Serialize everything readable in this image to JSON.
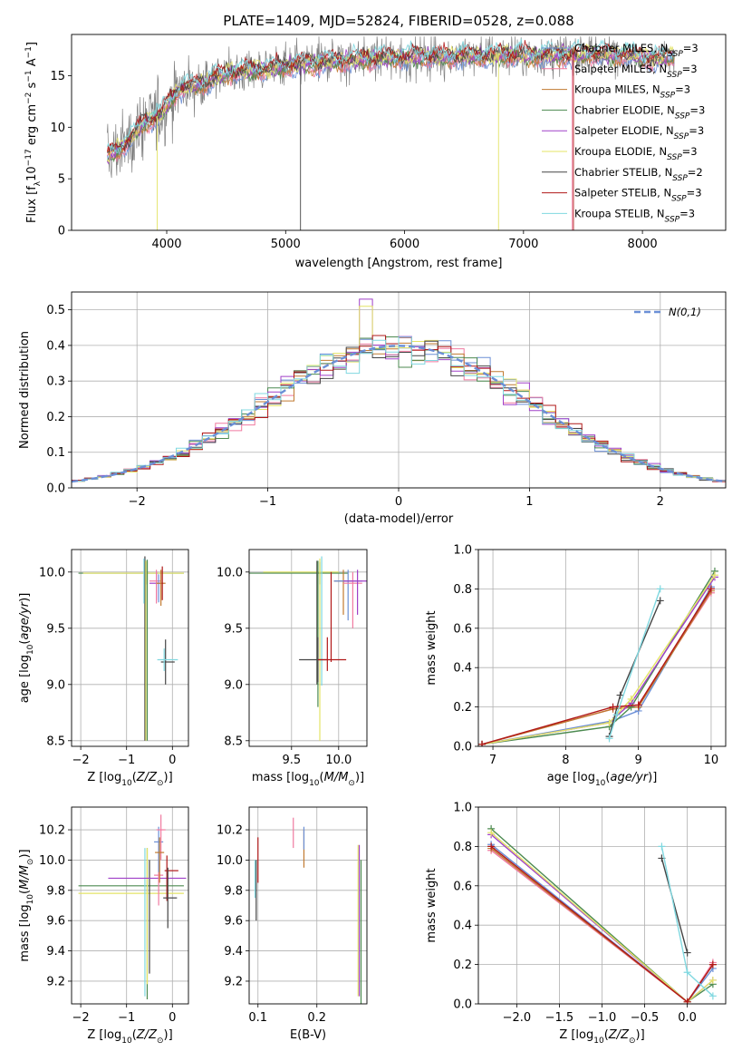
{
  "figure": {
    "title": "PLATE=1409, MJD=52824, FIBERID=0528, z=0.088"
  },
  "colors": {
    "series": [
      "#6b8fd6",
      "#f07aa0",
      "#c07a30",
      "#4c8a50",
      "#a040c8",
      "#e4e466",
      "#444444",
      "#b01818",
      "#80d8e0"
    ],
    "data_spectrum": "#808080",
    "gaussian": "#6b8fd6",
    "grid": "#b0b0b0"
  },
  "chart_data": [
    {
      "id": "spectrum",
      "type": "line",
      "title": "PLATE=1409, MJD=52824, FIBERID=0528, z=0.088",
      "xlabel": "wavelength [Angstrom, rest frame]",
      "ylabel": "Flux [fλ10⁻¹⁷ erg cm⁻² s⁻¹ A⁻¹]",
      "xlim": [
        3200,
        8700
      ],
      "ylim": [
        0,
        19
      ],
      "xticks": [
        4000,
        5000,
        6000,
        7000,
        8000
      ],
      "yticks": [
        0,
        5,
        10,
        15
      ],
      "grid": false,
      "legend_position": "upper-right",
      "continuum_knots": [
        [
          3500,
          7.2
        ],
        [
          3650,
          8.3
        ],
        [
          3800,
          10.3
        ],
        [
          3950,
          11.3
        ],
        [
          4100,
          13.7
        ],
        [
          4300,
          14.2
        ],
        [
          4500,
          15.3
        ],
        [
          4800,
          15.6
        ],
        [
          5200,
          16.2
        ],
        [
          5600,
          16.6
        ],
        [
          6000,
          16.8
        ],
        [
          6400,
          16.9
        ],
        [
          6800,
          17.0
        ],
        [
          7200,
          17.0
        ],
        [
          7600,
          17.1
        ],
        [
          7900,
          17.0
        ],
        [
          8100,
          16.6
        ],
        [
          8270,
          16.9
        ]
      ],
      "data_noise_amplitude": 2.5,
      "series": [
        {
          "name": "Chabrier MILES, N_SSP=3"
        },
        {
          "name": "Salpeter MILES, N_SSP=3"
        },
        {
          "name": "Kroupa MILES, N_SSP=3"
        },
        {
          "name": "Chabrier ELODIE, N_SSP=3"
        },
        {
          "name": "Salpeter ELODIE, N_SSP=3"
        },
        {
          "name": "Kroupa ELODIE, N_SSP=3"
        },
        {
          "name": "Chabrier STELIB, N_SSP=2"
        },
        {
          "name": "Salpeter STELIB, N_SSP=3"
        },
        {
          "name": "Kroupa STELIB, N_SSP=3"
        }
      ]
    },
    {
      "id": "residuals",
      "type": "line",
      "xlabel": "(data-model)/error",
      "ylabel": "Normed distribution",
      "xlim": [
        -2.5,
        2.5
      ],
      "ylim": [
        0,
        0.55
      ],
      "xticks": [
        -2,
        -1,
        0,
        1,
        2
      ],
      "yticks": [
        0.0,
        0.1,
        0.2,
        0.3,
        0.4,
        0.5
      ],
      "grid": true,
      "legend_position": "upper-right",
      "gaussian_label": "N(0,1)",
      "bin_width": 0.1
    },
    {
      "id": "age-vs-Z",
      "type": "scatter",
      "xlabel": "Z [log10(Z/Zsun)]",
      "ylabel": "age  [log10(age/yr)]",
      "xlim": [
        -2.2,
        0.35
      ],
      "ylim": [
        8.45,
        10.2
      ],
      "xticks": [
        -2,
        -1,
        0
      ],
      "yticks": [
        8.5,
        9.0,
        9.5,
        10.0
      ],
      "grid": true,
      "points": [
        {
          "x": -0.55,
          "y": 9.99,
          "xerr": [
            1.5,
            0.8
          ],
          "yerr": [
            0.1,
            0.12
          ],
          "c": 3
        },
        {
          "x": -0.55,
          "y": 9.99,
          "xerr": [
            1.4,
            0.8
          ],
          "yerr": [
            0.1,
            0.1
          ],
          "c": 5
        },
        {
          "x": -0.6,
          "y": 10.0,
          "yerr": [
            1.5,
            0.14
          ],
          "c": 6
        },
        {
          "x": -0.58,
          "y": 10.0,
          "yerr": [
            1.5,
            0.1
          ],
          "c": 5
        },
        {
          "x": -0.55,
          "y": 10.0,
          "yerr": [
            1.5,
            0.1
          ],
          "c": 3
        },
        {
          "x": -0.62,
          "y": 10.02,
          "yerr": [
            0.3,
            0.1
          ],
          "c": 8
        },
        {
          "x": -0.35,
          "y": 9.9,
          "xerr": [
            0.15,
            0.15
          ],
          "yerr": [
            0.15,
            0.1
          ],
          "c": 4
        },
        {
          "x": -0.35,
          "y": 9.92,
          "xerr": [
            0.15,
            0.1
          ],
          "yerr": [
            0.2,
            0.1
          ],
          "c": 1
        },
        {
          "x": -0.3,
          "y": 9.88,
          "yerr": [
            0.15,
            0.1
          ],
          "c": 0
        },
        {
          "x": -0.25,
          "y": 9.9,
          "xerr": [
            0.1,
            0.1
          ],
          "yerr": [
            0.2,
            0.12
          ],
          "c": 2
        },
        {
          "x": -0.22,
          "y": 9.85,
          "yerr": [
            0.1,
            0.2
          ],
          "c": 7
        },
        {
          "x": -0.15,
          "y": 9.2,
          "xerr": [
            0.1,
            0.2
          ],
          "yerr": [
            0.2,
            0.2
          ],
          "c": 6
        },
        {
          "x": -0.18,
          "y": 9.22,
          "xerr": [
            0.15,
            0.3
          ],
          "yerr": [
            0.1,
            0.1
          ],
          "c": 8
        }
      ]
    },
    {
      "id": "age-vs-mass",
      "type": "scatter",
      "xlabel": "mass [log10(M/Msun)]",
      "ylabel": "",
      "xlim": [
        9.05,
        10.3
      ],
      "ylim": [
        8.45,
        10.2
      ],
      "xticks": [
        9.5,
        10.0
      ],
      "yticks": [
        8.5,
        9.0,
        9.5,
        10.0
      ],
      "grid": true,
      "points": [
        {
          "x": 9.8,
          "y": 9.99,
          "xerr": [
            0.75,
            0.3
          ],
          "yerr": [
            0.1,
            0.1
          ],
          "c": 3
        },
        {
          "x": 9.8,
          "y": 10.0,
          "xerr": [
            0.6,
            0.2
          ],
          "yerr": [
            1.5,
            0.12
          ],
          "c": 5
        },
        {
          "x": 9.77,
          "y": 10.0,
          "yerr": [
            1.0,
            0.1
          ],
          "c": 6
        },
        {
          "x": 9.78,
          "y": 10.0,
          "yerr": [
            1.2,
            0.1
          ],
          "c": 3
        },
        {
          "x": 9.82,
          "y": 9.99,
          "yerr": [
            1.0,
            0.15
          ],
          "c": 8
        },
        {
          "x": 9.78,
          "y": 9.22,
          "xerr": [
            0.2,
            0.1
          ],
          "yerr": [
            0.2,
            0.2
          ],
          "c": 6
        },
        {
          "x": 9.88,
          "y": 9.22,
          "xerr": [
            0.1,
            0.2
          ],
          "yerr": [
            0.1,
            0.2
          ],
          "c": 7
        },
        {
          "x": 9.92,
          "y": 9.9,
          "yerr": [
            0.7,
            0.1
          ],
          "c": 7
        },
        {
          "x": 10.05,
          "y": 9.92,
          "xerr": [
            0.1,
            0.1
          ],
          "yerr": [
            0.3,
            0.1
          ],
          "c": 2
        },
        {
          "x": 10.1,
          "y": 9.92,
          "xerr": [
            0.15,
            0.15
          ],
          "yerr": [
            0.35,
            0.1
          ],
          "c": 0
        },
        {
          "x": 10.15,
          "y": 9.9,
          "xerr": [
            0.1,
            0.1
          ],
          "yerr": [
            0.4,
            0.1
          ],
          "c": 1
        },
        {
          "x": 10.2,
          "y": 9.92,
          "xerr": [
            0.15,
            0.1
          ],
          "yerr": [
            0.3,
            0.1
          ],
          "c": 4
        }
      ]
    },
    {
      "id": "weight-vs-age",
      "type": "line",
      "xlabel": "age  [log10(age/yr)]",
      "ylabel": "mass weight",
      "xlim": [
        6.8,
        10.2
      ],
      "ylim": [
        0,
        1.0
      ],
      "xticks": [
        7,
        8,
        9,
        10
      ],
      "yticks": [
        0.0,
        0.2,
        0.4,
        0.6,
        0.8,
        1.0
      ],
      "grid": true,
      "series": [
        {
          "c": 0,
          "x": [
            6.85,
            8.65,
            9.0,
            10.0
          ],
          "y": [
            0.01,
            0.13,
            0.18,
            0.81
          ]
        },
        {
          "c": 1,
          "x": [
            6.85,
            8.65,
            9.0,
            10.0
          ],
          "y": [
            0.01,
            0.19,
            0.21,
            0.78
          ]
        },
        {
          "c": 2,
          "x": [
            6.85,
            8.65,
            9.0,
            10.0
          ],
          "y": [
            0.01,
            0.19,
            0.2,
            0.79
          ]
        },
        {
          "c": 3,
          "x": [
            6.85,
            8.6,
            8.9,
            10.05
          ],
          "y": [
            0.01,
            0.1,
            0.2,
            0.89
          ]
        },
        {
          "c": 4,
          "x": [
            6.85,
            8.6,
            8.9,
            10.05
          ],
          "y": [
            0.01,
            0.12,
            0.22,
            0.86
          ]
        },
        {
          "c": 5,
          "x": [
            6.85,
            8.6,
            8.9,
            10.05
          ],
          "y": [
            0.01,
            0.12,
            0.24,
            0.87
          ]
        },
        {
          "c": 6,
          "x": [
            8.6,
            8.75,
            9.3
          ],
          "y": [
            0.05,
            0.26,
            0.74
          ]
        },
        {
          "c": 7,
          "x": [
            6.85,
            8.65,
            9.0,
            10.0
          ],
          "y": [
            0.01,
            0.2,
            0.21,
            0.8
          ]
        },
        {
          "c": 8,
          "x": [
            8.6,
            8.7,
            9.3
          ],
          "y": [
            0.04,
            0.16,
            0.8
          ]
        }
      ]
    },
    {
      "id": "mass-vs-Z",
      "type": "scatter",
      "xlabel": "Z [log10(Z/Zsun)]",
      "ylabel": "mass [log10(M/Msun)]",
      "xlim": [
        -2.2,
        0.35
      ],
      "ylim": [
        9.05,
        10.35
      ],
      "xticks": [
        -2,
        -1,
        0
      ],
      "yticks": [
        9.2,
        9.4,
        9.6,
        9.8,
        10.0,
        10.2
      ],
      "grid": true,
      "points": [
        {
          "x": -0.55,
          "y": 9.83,
          "xerr": [
            1.5,
            0.8
          ],
          "yerr": [
            0.75,
            0.25
          ],
          "c": 3
        },
        {
          "x": -0.55,
          "y": 9.78,
          "xerr": [
            1.5,
            0.8
          ],
          "yerr": [
            0.6,
            0.3
          ],
          "c": 5
        },
        {
          "x": -0.6,
          "y": 9.7,
          "yerr": [
            0.6,
            0.38
          ],
          "c": 8
        },
        {
          "x": -0.5,
          "y": 9.6,
          "yerr": [
            0.35,
            0.4
          ],
          "c": 6
        },
        {
          "x": -0.4,
          "y": 9.88,
          "xerr": [
            1.0,
            0.7
          ],
          "c": 4
        },
        {
          "x": -0.3,
          "y": 9.9,
          "xerr": [
            0.1,
            0.1
          ],
          "yerr": [
            0.2,
            0.1
          ],
          "c": 1
        },
        {
          "x": -0.3,
          "y": 10.12,
          "xerr": [
            0.1,
            0.1
          ],
          "yerr": [
            0.2,
            0.1
          ],
          "c": 0
        },
        {
          "x": -0.25,
          "y": 10.2,
          "xerr": [
            0.1,
            0.1
          ],
          "yerr": [
            0.2,
            0.1
          ],
          "c": 1
        },
        {
          "x": -0.28,
          "y": 10.05,
          "xerr": [
            0.1,
            0.1
          ],
          "yerr": [
            0.2,
            0.1
          ],
          "c": 2
        },
        {
          "x": -0.12,
          "y": 9.93,
          "xerr": [
            0.05,
            0.25
          ],
          "yerr": [
            0.2,
            0.1
          ],
          "c": 7
        },
        {
          "x": -0.1,
          "y": 9.75,
          "xerr": [
            0.1,
            0.2
          ],
          "yerr": [
            0.2,
            0.2
          ],
          "c": 6
        }
      ]
    },
    {
      "id": "mass-vs-EBV",
      "type": "scatter",
      "xlabel": "E(B-V)",
      "ylabel": "",
      "xlim": [
        0.085,
        0.285
      ],
      "ylim": [
        9.05,
        10.35
      ],
      "xticks": [
        0.1,
        0.2
      ],
      "yticks": [
        9.2,
        9.4,
        9.6,
        9.8,
        10.0,
        10.2
      ],
      "grid": true,
      "points": [
        {
          "x": 0.095,
          "y": 9.85,
          "yerr": [
            0.1,
            0.15
          ],
          "c": 8
        },
        {
          "x": 0.097,
          "y": 9.8,
          "yerr": [
            0.2,
            0.2
          ],
          "c": 6
        },
        {
          "x": 0.1,
          "y": 9.95,
          "yerr": [
            0.1,
            0.2
          ],
          "c": 7
        },
        {
          "x": 0.16,
          "y": 10.18,
          "yerr": [
            0.1,
            0.1
          ],
          "c": 1
        },
        {
          "x": 0.178,
          "y": 10.05,
          "yerr": [
            0.1,
            0.15
          ],
          "c": 2
        },
        {
          "x": 0.178,
          "y": 10.12,
          "yerr": [
            0.05,
            0.1
          ],
          "c": 0
        },
        {
          "x": 0.27,
          "y": 9.7,
          "yerr": [
            0.6,
            0.4
          ],
          "c": 5
        },
        {
          "x": 0.272,
          "y": 9.75,
          "yerr": [
            0.65,
            0.35
          ],
          "c": 4
        },
        {
          "x": 0.275,
          "y": 9.6,
          "yerr": [
            0.55,
            0.4
          ],
          "c": 3
        }
      ]
    },
    {
      "id": "weight-vs-Z",
      "type": "line",
      "xlabel": "Z [log10(Z/Zsun)]",
      "ylabel": "mass weight",
      "xlim": [
        -2.45,
        0.45
      ],
      "ylim": [
        0,
        1.0
      ],
      "xticks": [
        -2.0,
        -1.5,
        -1.0,
        -0.5,
        0.0
      ],
      "yticks": [
        0.0,
        0.2,
        0.4,
        0.6,
        0.8,
        1.0
      ],
      "grid": true,
      "series": [
        {
          "c": 0,
          "x": [
            -2.3,
            0.0,
            0.3
          ],
          "y": [
            0.81,
            0.01,
            0.18
          ]
        },
        {
          "c": 1,
          "x": [
            -2.3,
            0.0,
            0.3
          ],
          "y": [
            0.78,
            0.01,
            0.21
          ]
        },
        {
          "c": 2,
          "x": [
            -2.3,
            0.0,
            0.3
          ],
          "y": [
            0.79,
            0.01,
            0.2
          ]
        },
        {
          "c": 3,
          "x": [
            -2.3,
            0.0,
            0.3
          ],
          "y": [
            0.89,
            0.01,
            0.1
          ]
        },
        {
          "c": 4,
          "x": [
            -2.3,
            0.0,
            0.3
          ],
          "y": [
            0.86,
            0.01,
            0.12
          ]
        },
        {
          "c": 5,
          "x": [
            -2.3,
            0.0,
            0.3
          ],
          "y": [
            0.87,
            0.01,
            0.12
          ]
        },
        {
          "c": 6,
          "x": [
            -0.3,
            0.0
          ],
          "y": [
            0.74,
            0.26
          ]
        },
        {
          "c": 7,
          "x": [
            -2.3,
            0.0,
            0.3
          ],
          "y": [
            0.8,
            0.01,
            0.2
          ]
        },
        {
          "c": 8,
          "x": [
            -0.3,
            0.0,
            0.3
          ],
          "y": [
            0.8,
            0.16,
            0.04
          ]
        }
      ]
    }
  ]
}
